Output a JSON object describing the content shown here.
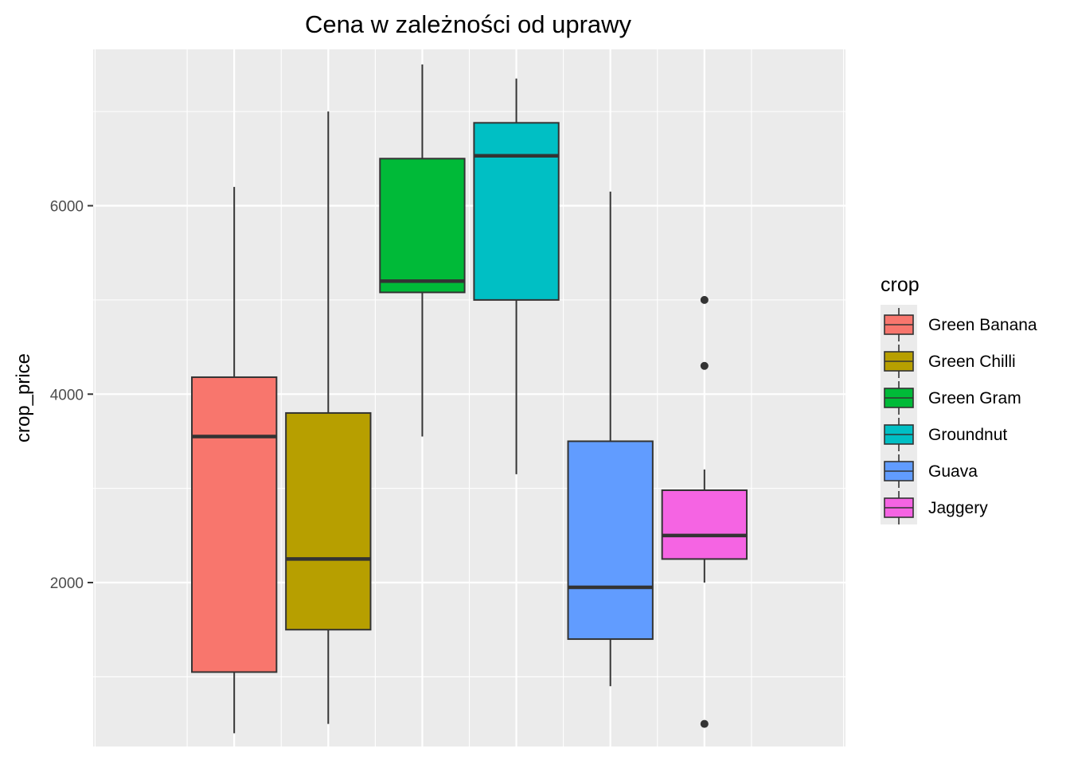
{
  "chart_data": {
    "type": "box",
    "title": "Cena w zależności od uprawy",
    "xlabel": "",
    "ylabel": "crop_price",
    "ylim": [
      260,
      7660
    ],
    "yticks": [
      2000,
      4000,
      6000
    ],
    "grid": true,
    "legend_title": "crop",
    "legend_position": "right",
    "series": [
      {
        "name": "Green Banana",
        "color": "#F8766D",
        "min": 400,
        "q1": 1050,
        "median": 3550,
        "q3": 4180,
        "max": 6200,
        "outliers": []
      },
      {
        "name": "Green Chilli",
        "color": "#B79F00",
        "min": 500,
        "q1": 1500,
        "median": 2250,
        "q3": 3800,
        "max": 7000,
        "outliers": []
      },
      {
        "name": "Green Gram",
        "color": "#00BA38",
        "min": 3550,
        "q1": 5080,
        "median": 5200,
        "q3": 6500,
        "max": 7500,
        "outliers": []
      },
      {
        "name": "Groundnut",
        "color": "#00BFC4",
        "min": 3150,
        "q1": 5000,
        "median": 6530,
        "q3": 6880,
        "max": 7350,
        "outliers": []
      },
      {
        "name": "Guava",
        "color": "#619CFF",
        "min": 900,
        "q1": 1400,
        "median": 1950,
        "q3": 3500,
        "max": 6150,
        "outliers": []
      },
      {
        "name": "Jaggery",
        "color": "#F564E3",
        "min": 2000,
        "q1": 2250,
        "median": 2500,
        "q3": 2980,
        "max": 3200,
        "outliers": [
          5000,
          4300,
          500
        ]
      }
    ]
  }
}
